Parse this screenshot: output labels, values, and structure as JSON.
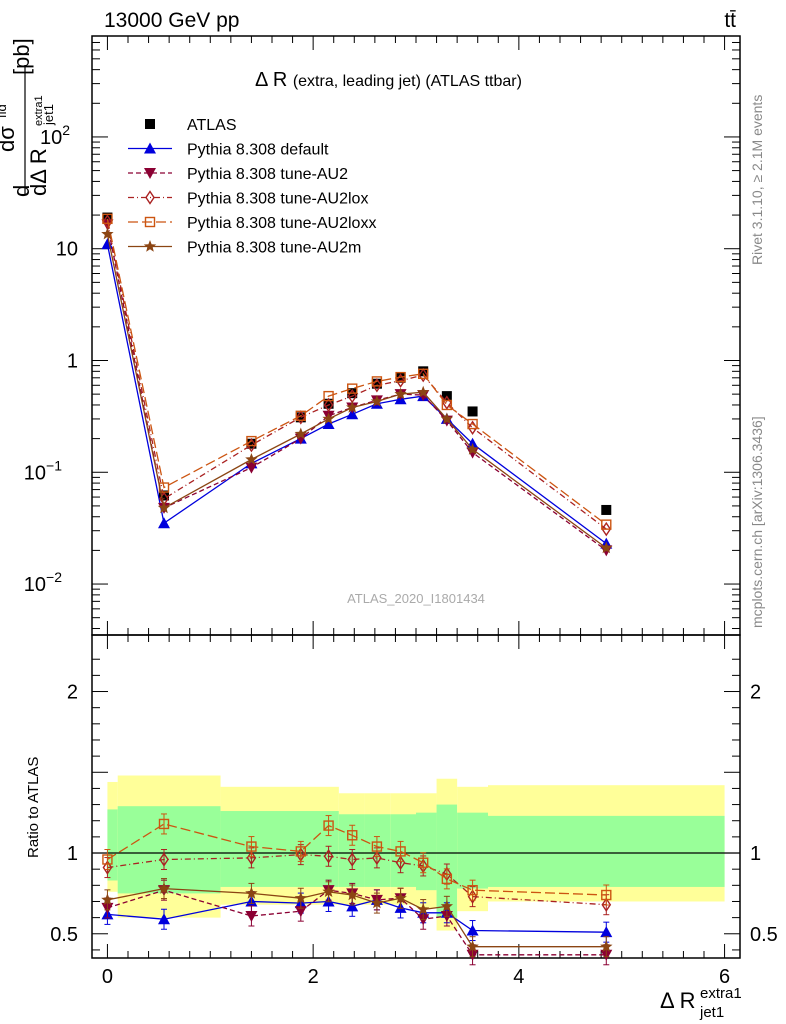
{
  "header": {
    "energy_label": "13000 GeV pp",
    "process_label": "tt̄",
    "rivet_label": "Rivet 3.1.10, ≥ 2.1M events",
    "mcplots_label": "mcplots.cern.ch [arXiv:1306.3436]",
    "analysis_id": "ATLAS_2020_I1801434"
  },
  "colors": {
    "atlas": "#000000",
    "default": "#0000dd",
    "au2": "#8b0033",
    "au2lox": "#aa2222",
    "au2loxx": "#cc5511",
    "au2m": "#8b4513",
    "band_inner": "#99ff99",
    "band_outer": "#ffff99"
  },
  "chart_data": [
    {
      "type": "line",
      "panel": "main",
      "title": "Δ R (extra, leading jet) (ATLAS ttbar)",
      "title_main": "Δ R",
      "title_sub": "(extra, leading jet) (ATLAS ttbar)",
      "ylabel": "dσ^fid / dΔ R^extra1_jet1 [pb]",
      "ylabel_parts": {
        "d1": "d",
        "dsigma": "dσ",
        "fid": "fid",
        "den": "dΔ R",
        "sub": "jet1",
        "sup": "extra1",
        "unit": "[pb]"
      },
      "xlabel": "Δ R^extra1_jet1",
      "y_scale": "log",
      "xlim": [
        -0.15,
        6.15
      ],
      "ylim": [
        0.0035,
        800
      ],
      "y_ticks": [
        {
          "value": 0.01,
          "base": "10",
          "exp": "−2"
        },
        {
          "value": 0.1,
          "base": "10",
          "exp": "−1"
        },
        {
          "value": 1,
          "base": "1",
          "exp": ""
        },
        {
          "value": 10,
          "base": "10",
          "exp": ""
        },
        {
          "value": 100,
          "base": "10",
          "exp": "2"
        }
      ],
      "legend_position": "top-left",
      "x": [
        0.0,
        0.55,
        1.4,
        1.88,
        2.15,
        2.38,
        2.62,
        2.85,
        3.07,
        3.3,
        3.55,
        4.85
      ],
      "series": [
        {
          "name": "ATLAS",
          "marker": "square",
          "color": "#000000",
          "line": "none",
          "values": [
            19.0,
            0.062,
            0.18,
            0.31,
            0.41,
            0.51,
            0.62,
            0.7,
            0.8,
            0.48,
            0.35,
            0.046
          ]
        },
        {
          "name": "Pythia 8.308 default",
          "marker": "triangle-up",
          "color": "#0000dd",
          "line": "solid",
          "values": [
            11.0,
            0.035,
            0.12,
            0.2,
            0.27,
            0.33,
            0.41,
            0.45,
            0.48,
            0.3,
            0.18,
            0.023
          ]
        },
        {
          "name": "Pythia 8.308 tune-AU2",
          "marker": "triangle-down",
          "color": "#8b0033",
          "line": "dashed",
          "values": [
            16.5,
            0.048,
            0.11,
            0.2,
            0.32,
            0.38,
            0.44,
            0.5,
            0.49,
            0.29,
            0.15,
            0.02
          ]
        },
        {
          "name": "Pythia 8.308 tune-AU2lox",
          "marker": "diamond-open",
          "color": "#aa2222",
          "line": "dashdot",
          "values": [
            17.5,
            0.058,
            0.175,
            0.31,
            0.4,
            0.48,
            0.6,
            0.66,
            0.74,
            0.42,
            0.25,
            0.031
          ]
        },
        {
          "name": "Pythia 8.308 tune-AU2loxx",
          "marker": "square-open",
          "color": "#cc5511",
          "line": "dashed-long",
          "values": [
            18.5,
            0.073,
            0.19,
            0.32,
            0.48,
            0.56,
            0.65,
            0.71,
            0.76,
            0.4,
            0.27,
            0.034
          ]
        },
        {
          "name": "Pythia 8.308 tune-AU2m",
          "marker": "star",
          "color": "#8b4513",
          "line": "solid",
          "values": [
            13.5,
            0.048,
            0.13,
            0.22,
            0.3,
            0.38,
            0.43,
            0.5,
            0.52,
            0.3,
            0.16,
            0.021
          ]
        }
      ]
    },
    {
      "type": "line",
      "panel": "ratio",
      "ylabel": "Ratio to ATLAS",
      "ylim": [
        0.35,
        2.35
      ],
      "y_ticks": [
        "0.5",
        "1",
        "2"
      ],
      "x_ticks": [
        "0",
        "2",
        "4",
        "6"
      ],
      "x": [
        0.0,
        0.55,
        1.4,
        1.88,
        2.15,
        2.38,
        2.62,
        2.85,
        3.07,
        3.3,
        3.55,
        4.85
      ],
      "bands": {
        "edges": [
          0.0,
          0.1,
          1.1,
          2.25,
          2.5,
          2.75,
          3.0,
          3.2,
          3.4,
          3.7,
          6.0
        ],
        "outer_low": [
          0.76,
          0.6,
          0.68,
          0.68,
          0.68,
          0.68,
          0.66,
          0.52,
          0.64,
          0.7
        ],
        "outer_high": [
          1.44,
          1.48,
          1.41,
          1.37,
          1.37,
          1.37,
          1.37,
          1.46,
          1.41,
          1.42
        ],
        "inner_low": [
          0.83,
          0.75,
          0.79,
          0.79,
          0.79,
          0.79,
          0.77,
          0.6,
          0.78,
          0.79
        ],
        "inner_high": [
          1.27,
          1.29,
          1.26,
          1.24,
          1.24,
          1.24,
          1.25,
          1.3,
          1.25,
          1.23
        ]
      },
      "series": [
        {
          "name": "Pythia 8.308 default",
          "marker": "triangle-up",
          "color": "#0000dd",
          "line": "solid",
          "values": [
            0.62,
            0.59,
            0.7,
            0.69,
            0.7,
            0.67,
            0.71,
            0.66,
            0.63,
            0.63,
            0.52,
            0.51
          ]
        },
        {
          "name": "Pythia 8.308 tune-AU2",
          "marker": "triangle-down",
          "color": "#8b0033",
          "line": "dashed",
          "values": [
            0.66,
            0.77,
            0.61,
            0.64,
            0.77,
            0.75,
            0.71,
            0.72,
            0.59,
            0.61,
            0.37,
            0.37
          ]
        },
        {
          "name": "Pythia 8.308 tune-AU2lox",
          "marker": "diamond-open",
          "color": "#aa2222",
          "line": "dashdot",
          "values": [
            0.91,
            0.96,
            0.97,
            0.99,
            0.98,
            0.96,
            0.97,
            0.94,
            0.92,
            0.87,
            0.73,
            0.68
          ]
        },
        {
          "name": "Pythia 8.308 tune-AU2loxx",
          "marker": "square-open",
          "color": "#cc5511",
          "line": "dashed-long",
          "values": [
            0.96,
            1.18,
            1.04,
            1.01,
            1.17,
            1.11,
            1.04,
            1.01,
            0.94,
            0.84,
            0.77,
            0.74
          ]
        },
        {
          "name": "Pythia 8.308 tune-AU2m",
          "marker": "star",
          "color": "#8b4513",
          "line": "solid",
          "values": [
            0.71,
            0.78,
            0.75,
            0.72,
            0.76,
            0.74,
            0.69,
            0.72,
            0.65,
            0.67,
            0.42,
            0.42
          ]
        }
      ]
    }
  ]
}
